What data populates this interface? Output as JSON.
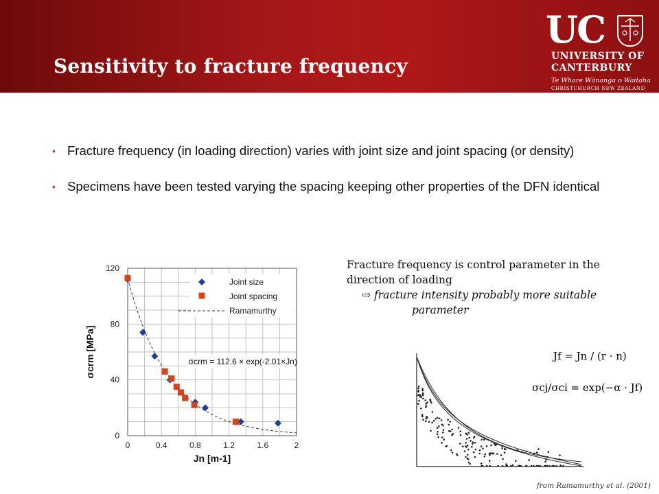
{
  "header": {
    "title": "Sensitivity to fracture frequency",
    "logo": {
      "mark": "UC",
      "line1": "UNIVERSITY OF",
      "line2": "CANTERBURY",
      "line3": "Te Whare Wānanga o Waitaha",
      "line4": "CHRISTCHURCH NEW ZEALAND"
    }
  },
  "bullets": [
    "Fracture frequency (in loading direction) varies with joint size and joint spacing (or density)",
    "Specimens have been tested varying the spacing keeping other properties of the DFN identical"
  ],
  "note": {
    "line1": "Fracture frequency is control parameter in the direction of loading",
    "arrow": "⇨",
    "line2": "fracture intensity probably more suitable",
    "line3": "parameter"
  },
  "equations": {
    "eq1": "Jf = Jn / (r · n)",
    "eq2": "σcj/σci = exp(−α · Jf)"
  },
  "credit": "from Ramamurthy et al. (2001)",
  "colors": {
    "header_bg": "#a51717",
    "joint_size": "#1f3e96",
    "joint_spacing": "#d2451e",
    "bullet": "#c0392b"
  },
  "chart_data": {
    "type": "scatter",
    "xlabel": "Jn [m-1]",
    "ylabel": "σcrm [MPa]",
    "xlim": [
      0,
      2
    ],
    "ylim": [
      0,
      120
    ],
    "xticks": [
      "0",
      "0.4",
      "0.8",
      "1.2",
      "1.6",
      "2"
    ],
    "yticks": [
      "0",
      "40",
      "80",
      "120"
    ],
    "grid": true,
    "legend": "top-right",
    "annotation": "σcrm = 112.6 × exp(-2.01×Jn)",
    "series": [
      {
        "name": "Joint size",
        "marker": "diamond",
        "points": [
          [
            0,
            112
          ],
          [
            0.18,
            74
          ],
          [
            0.32,
            57
          ],
          [
            0.5,
            40
          ],
          [
            0.8,
            24
          ],
          [
            0.92,
            20
          ],
          [
            1.34,
            10
          ],
          [
            1.78,
            9
          ]
        ]
      },
      {
        "name": "Joint spacing",
        "marker": "square",
        "points": [
          [
            0,
            113
          ],
          [
            0.44,
            46
          ],
          [
            0.52,
            41
          ],
          [
            0.58,
            35
          ],
          [
            0.63,
            31
          ],
          [
            0.68,
            27
          ],
          [
            0.79,
            22
          ],
          [
            1.28,
            10
          ]
        ]
      },
      {
        "name": "Ramamurthy",
        "style": "dashed",
        "function": {
          "a": 112.6,
          "b": -2.01
        },
        "xrange": [
          0,
          2
        ]
      }
    ]
  }
}
